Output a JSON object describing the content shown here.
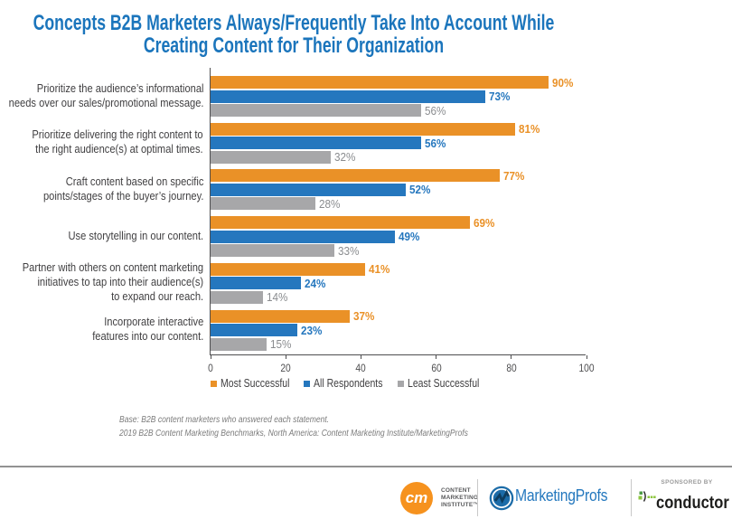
{
  "title": "Concepts B2B Marketers Always/Frequently Take Into Account While\nCreating Content for Their Organization",
  "chart_data": {
    "type": "bar",
    "orientation": "horizontal",
    "categories": [
      "Prioritize the audience’s informational\nneeds over our sales/promotional message.",
      "Prioritize delivering the right content to\nthe right audience(s) at optimal times.",
      "Craft content based on specific\npoints/stages of the buyer’s journey.",
      "Use storytelling in our content.",
      "Partner with others on content marketing\ninitiatives to tap into their audience(s)\nto expand our reach.",
      "Incorporate interactive\nfeatures into our content."
    ],
    "series": [
      {
        "name": "Most Successful",
        "color": "#EA9127",
        "label_color": "#EA9127",
        "label_bold": true,
        "values": [
          90,
          81,
          77,
          69,
          41,
          37
        ]
      },
      {
        "name": "All Respondents",
        "color": "#2577BE",
        "label_color": "#2577BE",
        "label_bold": true,
        "values": [
          73,
          56,
          52,
          49,
          24,
          23
        ]
      },
      {
        "name": "Least Successful",
        "color": "#A7A7A9",
        "label_color": "#8A8C8F",
        "label_bold": false,
        "values": [
          56,
          32,
          28,
          33,
          14,
          15
        ]
      }
    ],
    "xlim": [
      0,
      100
    ],
    "xticks": [
      0,
      20,
      40,
      60,
      80,
      100
    ],
    "value_suffix": "%",
    "legend_position": "bottom"
  },
  "notes": {
    "line1": "Base: B2B content marketers who answered each statement.",
    "line2": "2019 B2B Content Marketing Benchmarks, North America: Content Marketing Institute/MarketingProfs"
  },
  "footer": {
    "cmi_monogram": "cm",
    "cmi_line1": "CONTENT",
    "cmi_line2": "MARKETING",
    "cmi_line3": "INSTITUTE™",
    "marketingprofs": "MarketingProfs",
    "sponsored_by": "SPONSORED BY",
    "conductor": "conductor"
  },
  "colors": {
    "title": "#1B75BC",
    "axis": "#4e4e50"
  }
}
